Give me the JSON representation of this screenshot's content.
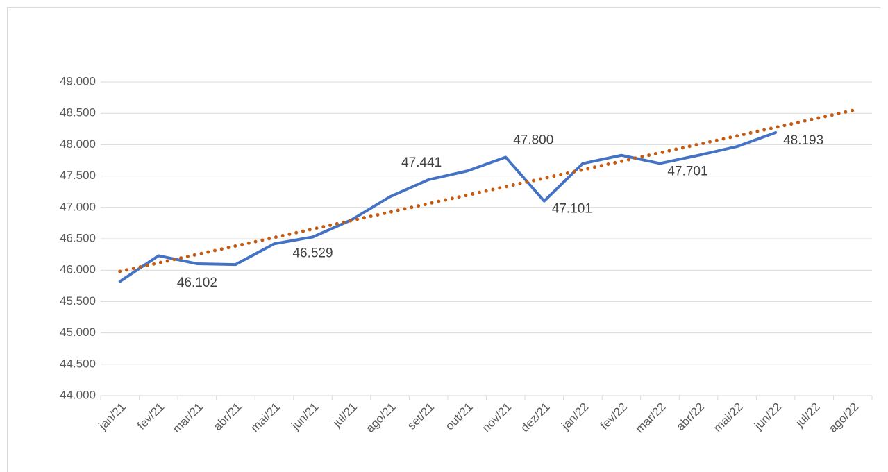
{
  "chart_data": {
    "type": "line",
    "categories": [
      "jan/21",
      "fev/21",
      "mar/21",
      "abr/21",
      "mai/21",
      "jun/21",
      "jul/21",
      "ago/21",
      "set/21",
      "out/21",
      "nov/21",
      "dez/21",
      "jan/22",
      "fev/22",
      "mar/22",
      "abr/22",
      "mai/22",
      "jun/22",
      "jul/22",
      "ago/22"
    ],
    "series": [
      {
        "color": "#4472c4",
        "style": "solid",
        "values": [
          45820,
          46230,
          46102,
          46090,
          46420,
          46529,
          46800,
          47170,
          47441,
          47580,
          47800,
          47101,
          47700,
          47830,
          47701,
          47830,
          47970,
          48193,
          null,
          null
        ],
        "value_labels": [
          null,
          null,
          "46.102",
          null,
          null,
          "46.529",
          null,
          null,
          "47.441",
          null,
          "47.800",
          "47.101",
          null,
          null,
          "47.701",
          null,
          null,
          "48.193",
          null,
          null
        ]
      },
      {
        "color": "#c55a11",
        "style": "dotted",
        "values": [
          45980,
          46115,
          46250,
          46385,
          46520,
          46655,
          46790,
          46925,
          47060,
          47195,
          47330,
          47465,
          47600,
          47735,
          47870,
          48005,
          48140,
          48275,
          48410,
          48545
        ]
      }
    ],
    "ylim": [
      44000,
      49000
    ],
    "yticks": [
      {
        "value": 44000,
        "label": "44.000"
      },
      {
        "value": 44500,
        "label": "44.500"
      },
      {
        "value": 45000,
        "label": "45.000"
      },
      {
        "value": 45500,
        "label": "45.500"
      },
      {
        "value": 46000,
        "label": "46.000"
      },
      {
        "value": 46500,
        "label": "46.500"
      },
      {
        "value": 47000,
        "label": "47.000"
      },
      {
        "value": 47500,
        "label": "47.500"
      },
      {
        "value": 48000,
        "label": "48.000"
      },
      {
        "value": 48500,
        "label": "48.500"
      },
      {
        "value": 49000,
        "label": "49.000"
      }
    ],
    "grid": true
  }
}
